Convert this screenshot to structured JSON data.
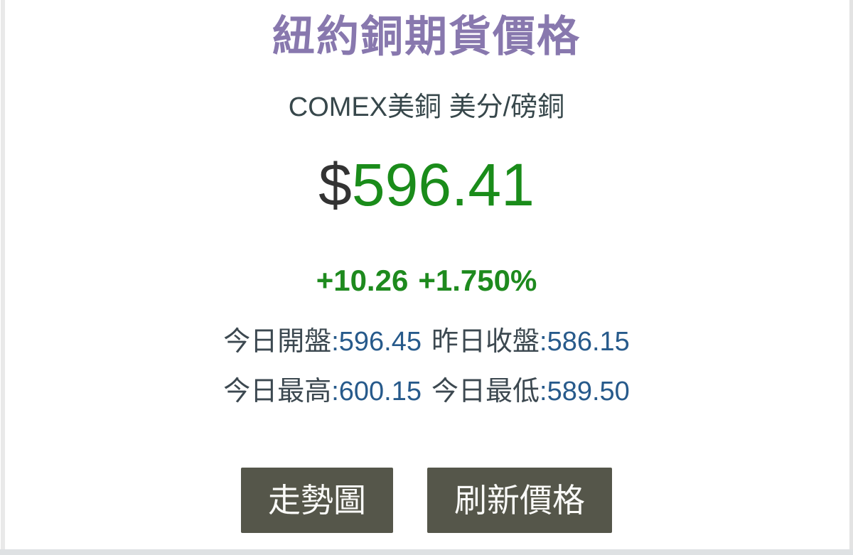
{
  "header": {
    "title": "紐約銅期貨價格",
    "subtitle": "COMEX美銅 美分/磅銅"
  },
  "quote": {
    "currency_symbol": "$",
    "price": "596.41",
    "change_absolute": "+10.26",
    "change_percent": "+1.750%"
  },
  "stats": {
    "separator": ":",
    "open_label": "今日開盤",
    "open_value": "596.45",
    "prev_close_label": "昨日收盤",
    "prev_close_value": "586.15",
    "high_label": "今日最高",
    "high_value": "600.15",
    "low_label": "今日最低",
    "low_value": "589.50"
  },
  "actions": {
    "trend_chart": "走勢圖",
    "refresh": "刷新價格"
  },
  "colors": {
    "title_purple": "#8878ae",
    "subtitle_slate": "#37474b",
    "price_green": "#1a8c1a",
    "currency_dark": "#333333",
    "stat_label_slate": "#3c4850",
    "stat_value_blue": "#275a8b",
    "button_olive": "#55564a",
    "button_text": "#fafaf8",
    "bottom_bar_gray": "#dee1e3"
  }
}
